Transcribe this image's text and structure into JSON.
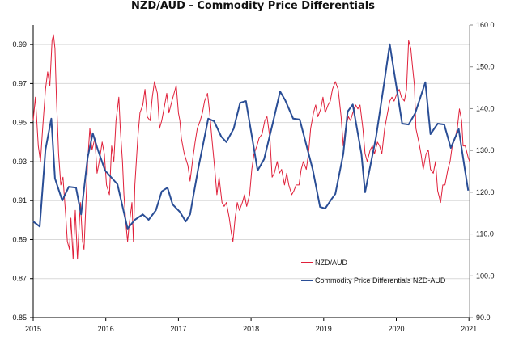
{
  "chart_data": {
    "type": "line",
    "title": "NZD/AUD - Commodity Price Differentials",
    "xlabel": "",
    "ylabel": "",
    "x_ticks": [
      "2015",
      "2016",
      "2017",
      "2018",
      "2019",
      "2020",
      "2021"
    ],
    "xlim": [
      2015,
      2021.02
    ],
    "y_left": {
      "ylim": [
        0.85,
        1.0
      ],
      "ticks": [
        "0.85",
        "0.87",
        "0.89",
        "0.91",
        "0.93",
        "0.95",
        "0.97",
        "0.99"
      ],
      "grid": true
    },
    "y_right": {
      "ylim": [
        90,
        160
      ],
      "ticks": [
        "90.0",
        "100.0",
        "110.0",
        "120.0",
        "130.0",
        "140.0",
        "150.0",
        "160.0"
      ]
    },
    "legend": {
      "placement": "bottom-right-center"
    },
    "series": [
      {
        "name": "NZD/AUD",
        "axis": "left",
        "color": "#e0203a",
        "points": [
          [
            2015.0,
            0.951
          ],
          [
            2015.03,
            0.963
          ],
          [
            2015.07,
            0.938
          ],
          [
            2015.1,
            0.93
          ],
          [
            2015.13,
            0.947
          ],
          [
            2015.17,
            0.967
          ],
          [
            2015.2,
            0.976
          ],
          [
            2015.23,
            0.969
          ],
          [
            2015.26,
            0.992
          ],
          [
            2015.28,
            0.995
          ],
          [
            2015.3,
            0.988
          ],
          [
            2015.32,
            0.963
          ],
          [
            2015.35,
            0.934
          ],
          [
            2015.38,
            0.918
          ],
          [
            2015.41,
            0.922
          ],
          [
            2015.45,
            0.901
          ],
          [
            2015.47,
            0.889
          ],
          [
            2015.5,
            0.885
          ],
          [
            2015.52,
            0.901
          ],
          [
            2015.55,
            0.88
          ],
          [
            2015.58,
            0.905
          ],
          [
            2015.61,
            0.88
          ],
          [
            2015.65,
            0.909
          ],
          [
            2015.68,
            0.889
          ],
          [
            2015.7,
            0.885
          ],
          [
            2015.75,
            0.93
          ],
          [
            2015.78,
            0.947
          ],
          [
            2015.81,
            0.936
          ],
          [
            2015.85,
            0.942
          ],
          [
            2015.88,
            0.924
          ],
          [
            2015.91,
            0.93
          ],
          [
            2015.95,
            0.94
          ],
          [
            2015.98,
            0.934
          ],
          [
            2016.01,
            0.918
          ],
          [
            2016.05,
            0.913
          ],
          [
            2016.08,
            0.938
          ],
          [
            2016.11,
            0.93
          ],
          [
            2016.14,
            0.951
          ],
          [
            2016.16,
            0.957
          ],
          [
            2016.18,
            0.963
          ],
          [
            2016.2,
            0.947
          ],
          [
            2016.23,
            0.93
          ],
          [
            2016.25,
            0.913
          ],
          [
            2016.28,
            0.897
          ],
          [
            2016.3,
            0.889
          ],
          [
            2016.32,
            0.897
          ],
          [
            2016.36,
            0.909
          ],
          [
            2016.38,
            0.889
          ],
          [
            2016.4,
            0.918
          ],
          [
            2016.44,
            0.942
          ],
          [
            2016.47,
            0.955
          ],
          [
            2016.51,
            0.959
          ],
          [
            2016.54,
            0.967
          ],
          [
            2016.57,
            0.953
          ],
          [
            2016.61,
            0.951
          ],
          [
            2016.64,
            0.963
          ],
          [
            2016.67,
            0.971
          ],
          [
            2016.71,
            0.965
          ],
          [
            2016.74,
            0.947
          ],
          [
            2016.77,
            0.951
          ],
          [
            2016.81,
            0.959
          ],
          [
            2016.84,
            0.965
          ],
          [
            2016.87,
            0.955
          ],
          [
            2016.91,
            0.961
          ],
          [
            2016.94,
            0.965
          ],
          [
            2016.97,
            0.969
          ],
          [
            2017.0,
            0.955
          ],
          [
            2017.02,
            0.951
          ],
          [
            2017.04,
            0.942
          ],
          [
            2017.08,
            0.934
          ],
          [
            2017.13,
            0.928
          ],
          [
            2017.16,
            0.92
          ],
          [
            2017.2,
            0.932
          ],
          [
            2017.23,
            0.94
          ],
          [
            2017.26,
            0.947
          ],
          [
            2017.3,
            0.951
          ],
          [
            2017.33,
            0.955
          ],
          [
            2017.36,
            0.961
          ],
          [
            2017.4,
            0.965
          ],
          [
            2017.43,
            0.955
          ],
          [
            2017.46,
            0.942
          ],
          [
            2017.5,
            0.926
          ],
          [
            2017.53,
            0.913
          ],
          [
            2017.56,
            0.922
          ],
          [
            2017.6,
            0.909
          ],
          [
            2017.63,
            0.907
          ],
          [
            2017.66,
            0.909
          ],
          [
            2017.7,
            0.901
          ],
          [
            2017.73,
            0.893
          ],
          [
            2017.75,
            0.889
          ],
          [
            2017.78,
            0.901
          ],
          [
            2017.81,
            0.909
          ],
          [
            2017.84,
            0.905
          ],
          [
            2017.88,
            0.909
          ],
          [
            2017.91,
            0.913
          ],
          [
            2017.94,
            0.907
          ],
          [
            2017.98,
            0.913
          ],
          [
            2018.01,
            0.926
          ],
          [
            2018.04,
            0.934
          ],
          [
            2018.08,
            0.938
          ],
          [
            2018.11,
            0.942
          ],
          [
            2018.15,
            0.944
          ],
          [
            2018.19,
            0.951
          ],
          [
            2018.22,
            0.953
          ],
          [
            2018.26,
            0.942
          ],
          [
            2018.29,
            0.922
          ],
          [
            2018.32,
            0.924
          ],
          [
            2018.36,
            0.93
          ],
          [
            2018.39,
            0.924
          ],
          [
            2018.42,
            0.926
          ],
          [
            2018.46,
            0.918
          ],
          [
            2018.49,
            0.924
          ],
          [
            2018.52,
            0.918
          ],
          [
            2018.56,
            0.913
          ],
          [
            2018.59,
            0.915
          ],
          [
            2018.62,
            0.918
          ],
          [
            2018.66,
            0.918
          ],
          [
            2018.69,
            0.926
          ],
          [
            2018.72,
            0.93
          ],
          [
            2018.76,
            0.926
          ],
          [
            2018.79,
            0.934
          ],
          [
            2018.82,
            0.947
          ],
          [
            2018.86,
            0.955
          ],
          [
            2018.89,
            0.959
          ],
          [
            2018.92,
            0.953
          ],
          [
            2018.96,
            0.957
          ],
          [
            2018.99,
            0.963
          ],
          [
            2019.02,
            0.955
          ],
          [
            2019.06,
            0.959
          ],
          [
            2019.09,
            0.961
          ],
          [
            2019.12,
            0.967
          ],
          [
            2019.16,
            0.971
          ],
          [
            2019.18,
            0.969
          ],
          [
            2019.2,
            0.967
          ],
          [
            2019.24,
            0.953
          ],
          [
            2019.27,
            0.938
          ],
          [
            2019.3,
            0.947
          ],
          [
            2019.34,
            0.953
          ],
          [
            2019.37,
            0.951
          ],
          [
            2019.4,
            0.955
          ],
          [
            2019.44,
            0.959
          ],
          [
            2019.47,
            0.957
          ],
          [
            2019.5,
            0.959
          ],
          [
            2019.54,
            0.947
          ],
          [
            2019.57,
            0.934
          ],
          [
            2019.6,
            0.93
          ],
          [
            2019.64,
            0.936
          ],
          [
            2019.67,
            0.938
          ],
          [
            2019.7,
            0.934
          ],
          [
            2019.74,
            0.94
          ],
          [
            2019.77,
            0.938
          ],
          [
            2019.8,
            0.934
          ],
          [
            2019.84,
            0.947
          ],
          [
            2019.87,
            0.953
          ],
          [
            2019.91,
            0.961
          ],
          [
            2019.94,
            0.963
          ],
          [
            2019.97,
            0.961
          ],
          [
            2020.01,
            0.965
          ],
          [
            2020.04,
            0.967
          ],
          [
            2020.07,
            0.963
          ],
          [
            2020.11,
            0.961
          ],
          [
            2020.14,
            0.967
          ],
          [
            2020.17,
            0.992
          ],
          [
            2020.2,
            0.988
          ],
          [
            2020.22,
            0.98
          ],
          [
            2020.25,
            0.969
          ],
          [
            2020.27,
            0.947
          ],
          [
            2020.31,
            0.94
          ],
          [
            2020.34,
            0.934
          ],
          [
            2020.37,
            0.926
          ],
          [
            2020.41,
            0.934
          ],
          [
            2020.44,
            0.936
          ],
          [
            2020.47,
            0.926
          ],
          [
            2020.51,
            0.924
          ],
          [
            2020.54,
            0.93
          ],
          [
            2020.57,
            0.915
          ],
          [
            2020.61,
            0.909
          ],
          [
            2020.64,
            0.918
          ],
          [
            2020.67,
            0.918
          ],
          [
            2020.71,
            0.926
          ],
          [
            2020.74,
            0.93
          ],
          [
            2020.77,
            0.938
          ],
          [
            2020.81,
            0.942
          ],
          [
            2020.84,
            0.947
          ],
          [
            2020.87,
            0.957
          ],
          [
            2020.9,
            0.951
          ],
          [
            2020.92,
            0.938
          ],
          [
            2020.95,
            0.938
          ],
          [
            2020.99,
            0.932
          ],
          [
            2021.01,
            0.93
          ]
        ]
      },
      {
        "name": "Commodity Price Differentials NZD-AUD",
        "axis": "right",
        "color": "#2a4e96",
        "points": [
          [
            2015.0,
            113.0
          ],
          [
            2015.09,
            111.8
          ],
          [
            2015.17,
            130.2
          ],
          [
            2015.25,
            137.6
          ],
          [
            2015.3,
            123.3
          ],
          [
            2015.4,
            118.0
          ],
          [
            2015.49,
            121.3
          ],
          [
            2015.59,
            121.1
          ],
          [
            2015.66,
            114.7
          ],
          [
            2015.75,
            128.3
          ],
          [
            2015.82,
            134.1
          ],
          [
            2015.89,
            130.2
          ],
          [
            2015.99,
            125.2
          ],
          [
            2016.16,
            121.9
          ],
          [
            2016.3,
            111.3
          ],
          [
            2016.4,
            113.4
          ],
          [
            2016.51,
            114.7
          ],
          [
            2016.59,
            113.4
          ],
          [
            2016.69,
            115.7
          ],
          [
            2016.77,
            120.2
          ],
          [
            2016.85,
            121.1
          ],
          [
            2016.92,
            117.1
          ],
          [
            2017.02,
            115.3
          ],
          [
            2017.1,
            113.0
          ],
          [
            2017.16,
            114.7
          ],
          [
            2017.27,
            125.4
          ],
          [
            2017.41,
            137.6
          ],
          [
            2017.49,
            137.0
          ],
          [
            2017.59,
            133.3
          ],
          [
            2017.66,
            132.0
          ],
          [
            2017.76,
            135.2
          ],
          [
            2017.85,
            141.4
          ],
          [
            2017.93,
            141.8
          ],
          [
            2018.09,
            125.2
          ],
          [
            2018.18,
            127.9
          ],
          [
            2018.3,
            136.6
          ],
          [
            2018.4,
            144.1
          ],
          [
            2018.47,
            142.0
          ],
          [
            2018.58,
            137.6
          ],
          [
            2018.67,
            137.4
          ],
          [
            2018.85,
            125.4
          ],
          [
            2018.95,
            116.5
          ],
          [
            2019.02,
            116.1
          ],
          [
            2019.11,
            118.4
          ],
          [
            2019.16,
            119.6
          ],
          [
            2019.27,
            129.2
          ],
          [
            2019.33,
            139.3
          ],
          [
            2019.4,
            141.0
          ],
          [
            2019.52,
            129.2
          ],
          [
            2019.57,
            120.0
          ],
          [
            2019.72,
            133.1
          ],
          [
            2019.83,
            145.9
          ],
          [
            2019.91,
            155.4
          ],
          [
            2020.01,
            144.3
          ],
          [
            2020.08,
            136.4
          ],
          [
            2020.17,
            136.2
          ],
          [
            2020.26,
            138.9
          ],
          [
            2020.4,
            146.3
          ],
          [
            2020.47,
            133.9
          ],
          [
            2020.57,
            136.4
          ],
          [
            2020.66,
            136.2
          ],
          [
            2020.75,
            130.6
          ],
          [
            2020.86,
            135.1
          ],
          [
            2020.95,
            124.8
          ],
          [
            2020.99,
            120.4
          ]
        ]
      }
    ]
  }
}
